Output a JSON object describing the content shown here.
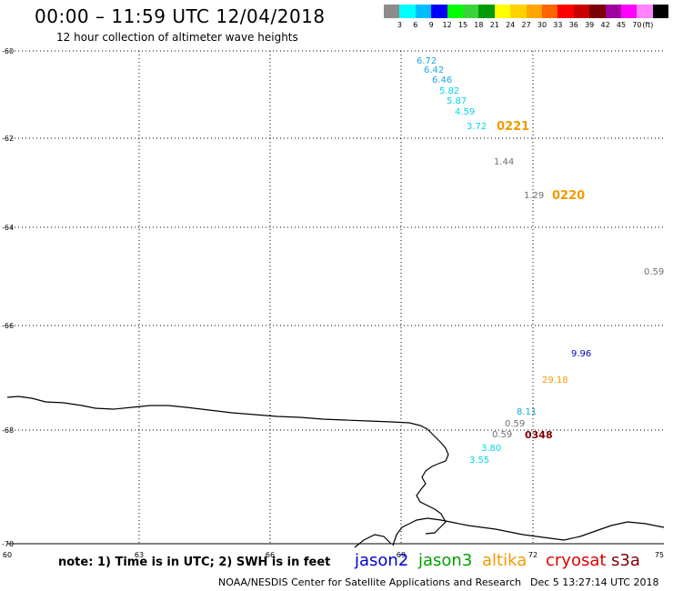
{
  "header": {
    "title": "00:00 – 11:59 UTC 12/04/2018",
    "subtitle": "12 hour collection of altimeter wave heights"
  },
  "colorbar": {
    "unit": "(ft)",
    "colors": [
      "#8c8c8c",
      "#00ffff",
      "#00bfff",
      "#0000ff",
      "#00ff00",
      "#3cd23c",
      "#009b00",
      "#ffff00",
      "#ffd200",
      "#ffa500",
      "#ff6400",
      "#ff0000",
      "#c80000",
      "#7d0000",
      "#a000a0",
      "#ff00ff",
      "#ff82ff",
      "#000000"
    ],
    "labels": [
      "3",
      "6",
      "9",
      "12",
      "15",
      "18",
      "21",
      "24",
      "27",
      "30",
      "33",
      "36",
      "39",
      "42",
      "45",
      "70"
    ]
  },
  "axes": {
    "lat_labels": [
      "-60",
      "-62",
      "-64",
      "-66",
      "-68",
      "-70"
    ],
    "lon_labels": [
      "60",
      "63",
      "66",
      "69",
      "72",
      "75"
    ]
  },
  "observations": [
    {
      "text": "6.72",
      "color": "#1aa8e0"
    },
    {
      "text": "6.42",
      "color": "#1aa8e0"
    },
    {
      "text": "6.46",
      "color": "#1aa8e0"
    },
    {
      "text": "5.82",
      "color": "#00d8e8"
    },
    {
      "text": "5.87",
      "color": "#00d8e8"
    },
    {
      "text": "4.59",
      "color": "#00d8e8"
    },
    {
      "text": "3.72",
      "color": "#00d8e8"
    },
    {
      "text": "0221",
      "color": "#f29a00"
    },
    {
      "text": "1.44",
      "color": "#707070"
    },
    {
      "text": "1.29",
      "color": "#707070"
    },
    {
      "text": "0220",
      "color": "#f29a00"
    },
    {
      "text": "0.59",
      "color": "#707070"
    },
    {
      "text": "9.96",
      "color": "#0000c8"
    },
    {
      "text": "29.18",
      "color": "#f29a00"
    },
    {
      "text": "8.11",
      "color": "#1aa8e0"
    },
    {
      "text": "0.59",
      "color": "#707070"
    },
    {
      "text": "0.59",
      "color": "#707070"
    },
    {
      "text": "0348",
      "color": "#7d0000"
    },
    {
      "text": "3.80",
      "color": "#00d8e8"
    },
    {
      "text": "3.55",
      "color": "#00d8e8"
    }
  ],
  "note": "note: 1) Time is in UTC; 2) SWH is in feet",
  "satellites": [
    {
      "name": "jason2",
      "color": "#0000cc"
    },
    {
      "name": "jason3",
      "color": "#00a000"
    },
    {
      "name": "altika",
      "color": "#f29a00"
    },
    {
      "name": "cryosat",
      "color": "#e00000"
    },
    {
      "name": "s3a",
      "color": "#7d0000"
    }
  ],
  "footer": {
    "left": "NOAA/NESDIS Center for Satellite Applications and Research",
    "right": "Dec  5 13:27:14 UTC 2018"
  }
}
